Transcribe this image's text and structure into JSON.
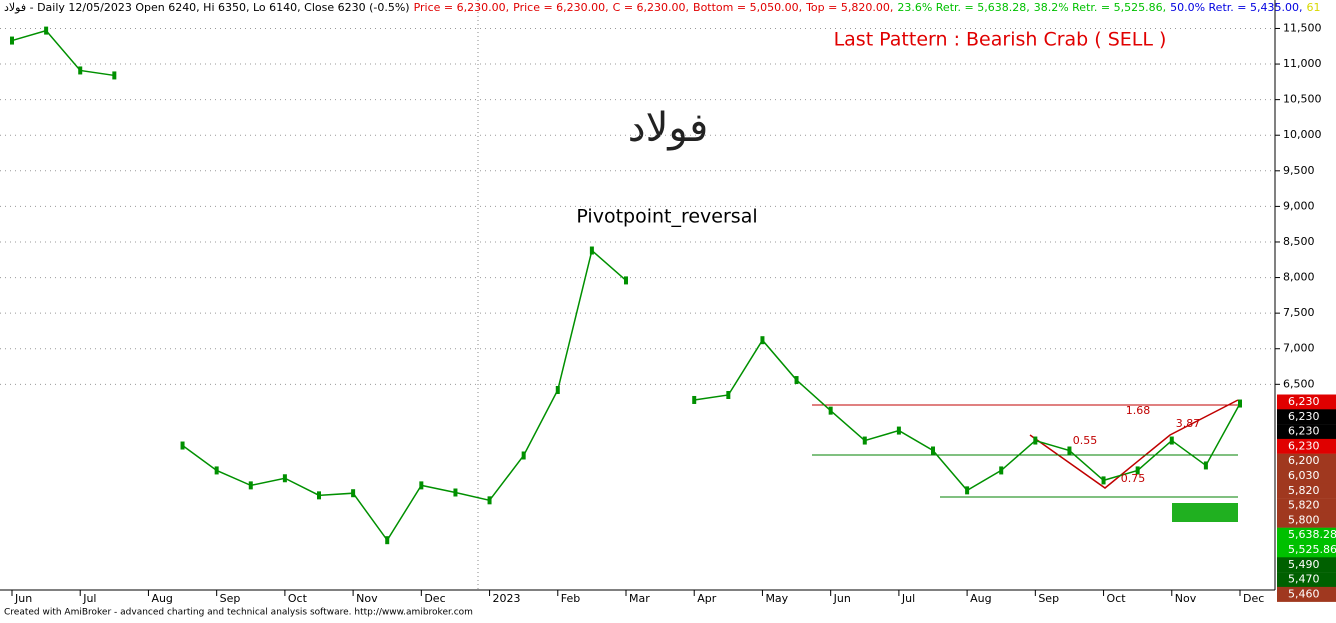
{
  "chart_data": {
    "type": "line",
    "header": [
      {
        "text": "فولاد - Daily 12/05/2023 Open 6240, Hi 6350, Lo 6140, Close 6230 (-0.5%)",
        "color": "#000000"
      },
      {
        "text": "Price = 6,230.00,",
        "color": "#e00000"
      },
      {
        "text": "Price = 6,230.00,",
        "color": "#e00000"
      },
      {
        "text": "C = 6,230.00,",
        "color": "#e00000"
      },
      {
        "text": "Bottom = 5,050.00,",
        "color": "#e00000"
      },
      {
        "text": "Top = 5,820.00,",
        "color": "#e00000"
      },
      {
        "text": "23.6% Retr. = 5,638.28,",
        "color": "#00c000"
      },
      {
        "text": "38.2% Retr. = 5,525.86,",
        "color": "#00c000"
      },
      {
        "text": "50.0% Retr. = 5,435.00,",
        "color": "#0000e0"
      },
      {
        "text": "61",
        "color": "#d8d800"
      }
    ],
    "pattern_title": "Last Pattern : Bearish Crab ( SELL )",
    "symbol": "فولاد",
    "annotation": "Pivotpoint_reversal",
    "ratios": [
      "1.68",
      "3.87",
      "0.55",
      "0.75"
    ],
    "footer": "Created with AmiBroker - advanced charting and technical analysis software. http://www.amibroker.com",
    "categories": [
      "Jun",
      null,
      "Jul",
      null,
      "Aug",
      null,
      "Sep",
      null,
      "Oct",
      null,
      "Nov",
      null,
      "Dec",
      null,
      "2023",
      null,
      "Feb",
      null,
      "Mar",
      null,
      "Apr",
      null,
      "May",
      null,
      "Jun",
      null,
      "Jul",
      null,
      "Aug",
      null,
      "Sep",
      null,
      "Oct",
      null,
      "Nov",
      null,
      "Dec"
    ],
    "series": [
      {
        "name": "فولاد",
        "color": "#009000",
        "values": [
          11330,
          11470,
          10910,
          10840,
          null,
          5640,
          5290,
          5080,
          5180,
          4940,
          4970,
          4310,
          5080,
          4980,
          4870,
          5500,
          6420,
          8380,
          7960,
          null,
          6280,
          6350,
          7120,
          6560,
          6130,
          5710,
          5850,
          5570,
          5010,
          5290,
          5710,
          5570,
          5150,
          5290,
          5710,
          5360,
          6230
        ]
      }
    ],
    "ylim": [
      3610,
      11900
    ],
    "yticks": [
      {
        "value": 6500,
        "label": "6,500"
      },
      {
        "value": 7000,
        "label": "7,000"
      },
      {
        "value": 7500,
        "label": "7,500"
      },
      {
        "value": 8000,
        "label": "8,000"
      },
      {
        "value": 8500,
        "label": "8,500"
      },
      {
        "value": 9000,
        "label": "9,000"
      },
      {
        "value": 9500,
        "label": "9,500"
      },
      {
        "value": 10000,
        "label": "10,000"
      },
      {
        "value": 10500,
        "label": "10,500"
      },
      {
        "value": 11000,
        "label": "11,000"
      },
      {
        "value": 11500,
        "label": "11,500"
      }
    ],
    "grid": true,
    "price_badges": [
      {
        "text": "6,230",
        "color": "#e00000"
      },
      {
        "text": "6,230",
        "color": "#000000"
      },
      {
        "text": "6,230",
        "color": "#000000"
      },
      {
        "text": "6,230",
        "color": "#e00000"
      },
      {
        "text": "6,200",
        "color": "#a0381f"
      },
      {
        "text": "6,030",
        "color": "#a0381f"
      },
      {
        "text": "5,820",
        "color": "#a0381f"
      },
      {
        "text": "5,820",
        "color": "#a0381f"
      },
      {
        "text": "5,800",
        "color": "#a0381f"
      },
      {
        "text": "5,638.28",
        "color": "#00c000"
      },
      {
        "text": "5,525.86",
        "color": "#00c000"
      },
      {
        "text": "5,490",
        "color": "#006000"
      },
      {
        "text": "5,470",
        "color": "#006000"
      },
      {
        "text": "5,460",
        "color": "#a0381f"
      }
    ]
  }
}
